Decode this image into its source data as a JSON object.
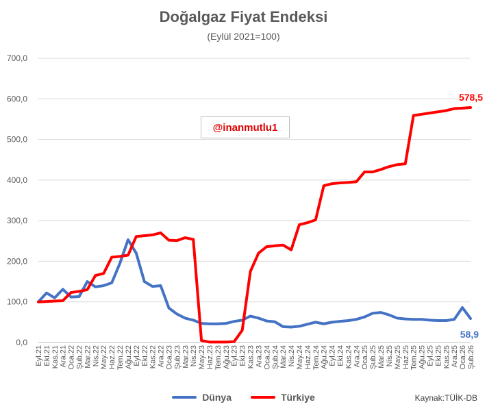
{
  "chart_data": {
    "type": "line",
    "title": "Doğalgaz Fiyat Endeksi",
    "subtitle": "(Eylül 2021=100)",
    "watermark": "@inanmutlu1",
    "source": "Kaynak:TÜİK-DB",
    "ylim": [
      0,
      700
    ],
    "yticks": [
      "0,0",
      "100,0",
      "200,0",
      "300,0",
      "400,0",
      "500,0",
      "600,0",
      "700,0"
    ],
    "ytick_values": [
      0,
      100,
      200,
      300,
      400,
      500,
      600,
      700
    ],
    "categories": [
      "Eyl.21",
      "Eki.21",
      "Kas.21",
      "Ara.21",
      "Oca.22",
      "Şub.22",
      "Mar.22",
      "Nis.22",
      "May.22",
      "Haz.22",
      "Tem.22",
      "Ağu.22",
      "Eyl.22",
      "Eki.22",
      "Kas.22",
      "Ara.22",
      "Oca.23",
      "Şub.23",
      "Mar.23",
      "Nis.23",
      "May.23",
      "Haz.23",
      "Tem.23",
      "Ağu.23",
      "Eyl.23",
      "Eki.23",
      "Kas.23",
      "Ara.23",
      "Oca.24",
      "Şub.24",
      "Mar.24",
      "Nis.24",
      "May.24",
      "Haz.24",
      "Tem.24",
      "Ağu.24",
      "Eyl.24",
      "Eki.24",
      "Kas.24",
      "Ara.24",
      "Oca.25",
      "Şub.25",
      "Mar.25",
      "Nis.25",
      "May.25",
      "Haz.25",
      "Tem.25",
      "Ağu.25",
      "Eyl.25",
      "Eki.25",
      "Kas.25",
      "Ara.25",
      "Oca.26",
      "Şub.26"
    ],
    "xticks": [
      "Eyl.21",
      "Eki.21",
      "Kas.21",
      "Ara.21",
      "Oca.22",
      "Şub.22",
      "Mar.22",
      "Nis.22",
      "May.22",
      "Haz.22",
      "Tem.22",
      "Ağu.22",
      "Eyl.22",
      "Eki.22",
      "Kas.22",
      "Ara.22",
      "Oca.23",
      "Şub.23",
      "Mar.23",
      "Nis.23",
      "May.23",
      "Haz.23",
      "Tem.23",
      "Ağu.23",
      "Eyl.23",
      "Eki.23",
      "Kas.23",
      "Ara.23",
      "Oca.24",
      "Şub.24",
      "Mar.24",
      "Nis.24",
      "May.24",
      "Haz.24",
      "Tem.24",
      "Ağu.24",
      "Eyl.24",
      "Eki.24",
      "Kas.24",
      "Ara.24",
      "Oca.25",
      "Şub.25",
      "Mar.25",
      "Nis.25",
      "May.25",
      "Haz.25",
      "Tem.25",
      "Ağu.25",
      "Eyl.25",
      "Eki.25",
      "Kas.25",
      "Ara.25",
      "Oca.26",
      "Şub.26"
    ],
    "series": [
      {
        "name": "Dünya",
        "color": "#4472c4",
        "end_label": "58,9",
        "values": [
          100,
          122,
          110,
          131,
          112,
          113,
          150,
          137,
          140,
          147,
          195,
          253,
          220,
          150,
          138,
          140,
          85,
          70,
          60,
          55,
          47,
          46,
          46,
          47,
          52,
          55,
          65,
          60,
          53,
          51,
          39,
          38,
          40,
          45,
          50,
          46,
          50,
          52,
          54,
          57,
          63,
          72,
          74,
          68,
          60,
          58,
          57,
          57,
          55,
          54,
          54,
          57,
          86,
          58.9
        ]
      },
      {
        "name": "Türkiye",
        "color": "#ff0000",
        "end_label": "578,5",
        "values": [
          100,
          101,
          102,
          103,
          123,
          126,
          130,
          165,
          170,
          210,
          212,
          215,
          261,
          263,
          265,
          270,
          252,
          251,
          258,
          254,
          5,
          1,
          1,
          1,
          2,
          30,
          175,
          220,
          236,
          238,
          240,
          228,
          290,
          295,
          302,
          386,
          391,
          393,
          394,
          396,
          420,
          420,
          426,
          433,
          438,
          440,
          559,
          562,
          565,
          568,
          571,
          576,
          577,
          578.5
        ]
      }
    ],
    "grid": true,
    "legend": "bottom"
  }
}
